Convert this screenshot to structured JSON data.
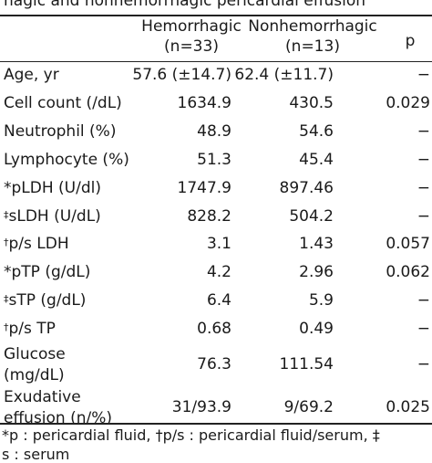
{
  "caption": "hagic and nonhemorrhagic pericardial effusion",
  "headers": {
    "hemorrhagic": "Hemorrhagic",
    "hemorrhagic_n": "(n=33)",
    "nonhemorrhagic": "Nonhemorrhagic",
    "nonhemorrhagic_n": "(n=13)",
    "p": "p"
  },
  "rows": [
    {
      "mark": "",
      "label": "Age, yr",
      "label2": "",
      "hem": "57.6 (±14.7)",
      "non": "62.4 (±11.7)",
      "p": "−"
    },
    {
      "mark": "",
      "label": "Cell count (/dL)",
      "label2": "",
      "hem": "1634.9",
      "non": "430.5",
      "p": "0.029"
    },
    {
      "mark": "",
      "label": "Neutrophil (%)",
      "label2": "",
      "hem": "48.9",
      "non": "54.6",
      "p": "−"
    },
    {
      "mark": "",
      "label": "Lymphocyte (%)",
      "label2": "",
      "hem": "51.3",
      "non": "45.4",
      "p": "−"
    },
    {
      "mark": "",
      "label": "*pLDH (U/dl)",
      "label2": "",
      "hem": "1747.9",
      "non": "897.46",
      "p": "−"
    },
    {
      "mark": "‡",
      "label": "sLDH (U/dL)",
      "label2": "",
      "hem": "828.2",
      "non": "504.2",
      "p": "−"
    },
    {
      "mark": "†",
      "label": "p/s LDH",
      "label2": "",
      "hem": "3.1",
      "non": "1.43",
      "p": "0.057"
    },
    {
      "mark": "",
      "label": "*pTP (g/dL)",
      "label2": "",
      "hem": "4.2",
      "non": "2.96",
      "p": "0.062"
    },
    {
      "mark": "‡",
      "label": "sTP (g/dL)",
      "label2": "",
      "hem": "6.4",
      "non": "5.9",
      "p": "−"
    },
    {
      "mark": "†",
      "label": "p/s TP",
      "label2": "",
      "hem": "0.68",
      "non": "0.49",
      "p": "−"
    },
    {
      "mark": "",
      "label": "Glucose",
      "label2": "(mg/dL)",
      "hem": "76.3",
      "non": "111.54",
      "p": "−"
    },
    {
      "mark": "",
      "label": "Exudative",
      "label2": "effusion (n/%)",
      "hem": "31/93.9",
      "non": "9/69.2",
      "p": "0.025"
    }
  ],
  "footnote": {
    "line1": "*p : pericardial fluid, †p/s : pericardial fluid/serum, ‡",
    "line2": "s : serum"
  }
}
